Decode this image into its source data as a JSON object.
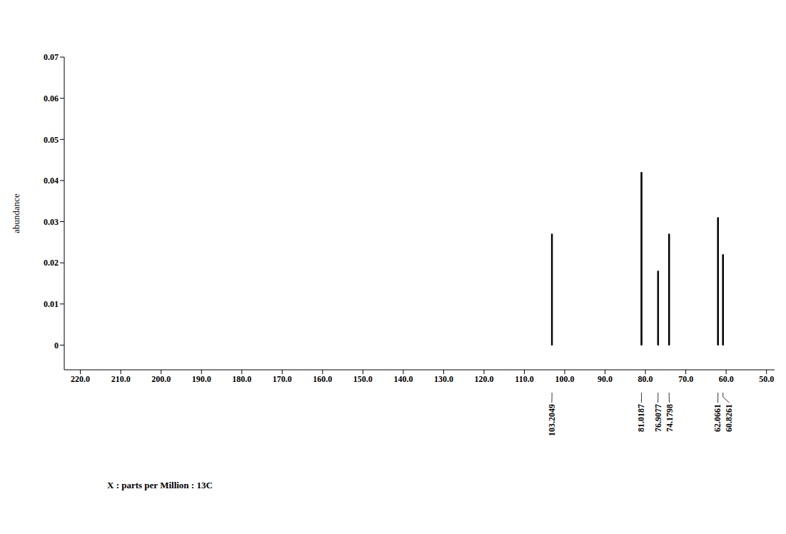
{
  "chart_data": {
    "type": "bar",
    "x_label": "X : parts per Million : 13C",
    "y_label": "abundance",
    "x": [
      103.2049,
      81.0187,
      76.9077,
      74.1798,
      62.0661,
      60.8261
    ],
    "values": [
      0.027,
      0.042,
      0.018,
      0.027,
      0.031,
      0.022
    ],
    "annotations": [
      "103.2049",
      "81.0187",
      "76.9077",
      "74.1798",
      "62.0661",
      "60.8261"
    ],
    "color": "#000000",
    "xlim": [
      224,
      48
    ],
    "xticks": [
      {
        "value": 220,
        "label": "220.0"
      },
      {
        "value": 210,
        "label": "210.0"
      },
      {
        "value": 200,
        "label": "200.0"
      },
      {
        "value": 190,
        "label": "190.0"
      },
      {
        "value": 180,
        "label": "180.0"
      },
      {
        "value": 170,
        "label": "170.0"
      },
      {
        "value": 160,
        "label": "160.0"
      },
      {
        "value": 150,
        "label": "150.0"
      },
      {
        "value": 140,
        "label": "140.0"
      },
      {
        "value": 130,
        "label": "130.0"
      },
      {
        "value": 120,
        "label": "120.0"
      },
      {
        "value": 110,
        "label": "110.0"
      },
      {
        "value": 100,
        "label": "100.0"
      },
      {
        "value": 90,
        "label": "90.0"
      },
      {
        "value": 80,
        "label": "80.0"
      },
      {
        "value": 70,
        "label": "70.0"
      },
      {
        "value": 60,
        "label": "60.0"
      },
      {
        "value": 50,
        "label": "50.0"
      }
    ],
    "ylim": [
      -0.006,
      0.07
    ],
    "yticks": [
      0,
      0.01,
      0.02,
      0.03,
      0.04,
      0.05,
      0.06,
      0.07
    ],
    "grid": false
  }
}
